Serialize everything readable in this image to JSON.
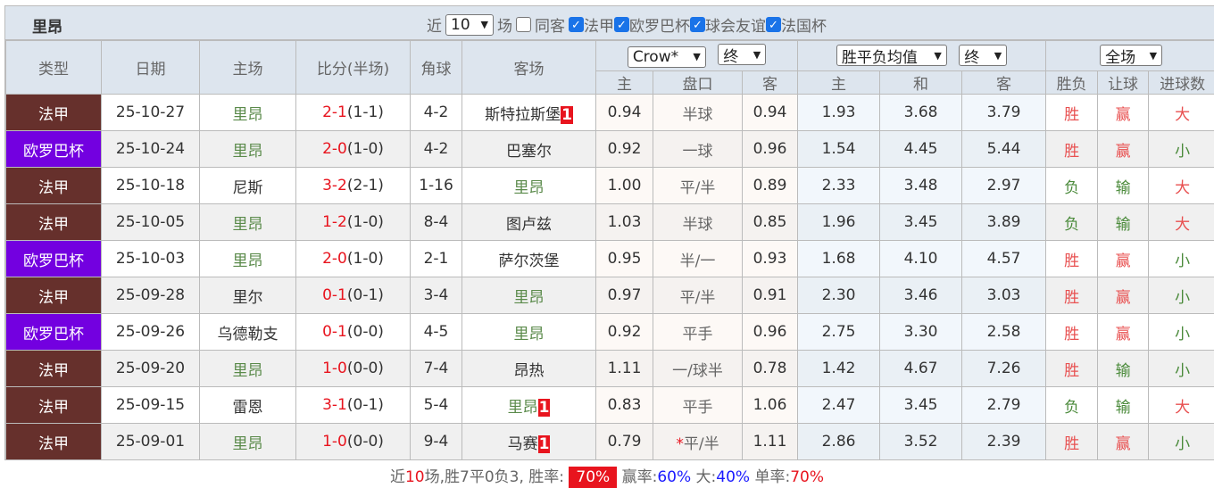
{
  "title": {
    "team": "里昂",
    "near_label": "近",
    "count": "10",
    "unit": "场",
    "same_label": "同客",
    "competitions": [
      {
        "label": "法甲",
        "checked": true
      },
      {
        "label": "欧罗巴杯",
        "checked": true
      },
      {
        "label": "球会友谊",
        "checked": true
      },
      {
        "label": "法国杯",
        "checked": true
      }
    ]
  },
  "header": {
    "type": "类型",
    "date": "日期",
    "home": "主场",
    "score": "比分(半场)",
    "corner": "角球",
    "away": "客场",
    "company_select": "Crow*",
    "handicap_time_select": "终",
    "avg_select": "胜平负均值",
    "avg_time_select": "终",
    "period_select": "全场",
    "h_home": "主",
    "h_line": "盘口",
    "h_away": "客",
    "e_home": "主",
    "e_draw": "和",
    "e_away": "客",
    "res": "胜负",
    "ah": "让球",
    "goals": "进球数"
  },
  "colors": {
    "法甲": "#66302c",
    "欧罗巴杯": "#7300e0"
  },
  "rows": [
    {
      "type": "法甲",
      "date": "25-10-27",
      "home": "里昂",
      "ft": "2-1",
      "ht": "(1-1)",
      "corner": "4-2",
      "away": "斯特拉斯堡",
      "away_badge": "1",
      "ah_home": "0.94",
      "ah_line": "半球",
      "ah_star": "",
      "ah_away": "0.94",
      "eu_home": "1.93",
      "eu_draw": "3.68",
      "eu_away": "3.79",
      "res": "胜",
      "ah": "赢",
      "goals": "大"
    },
    {
      "type": "欧罗巴杯",
      "date": "25-10-24",
      "home": "里昂",
      "ft": "2-0",
      "ht": "(1-0)",
      "corner": "4-2",
      "away": "巴塞尔",
      "away_badge": "",
      "ah_home": "0.92",
      "ah_line": "一球",
      "ah_star": "",
      "ah_away": "0.96",
      "eu_home": "1.54",
      "eu_draw": "4.45",
      "eu_away": "5.44",
      "res": "胜",
      "ah": "赢",
      "goals": "小"
    },
    {
      "type": "法甲",
      "date": "25-10-18",
      "home": "尼斯",
      "ft": "3-2",
      "ht": "(2-1)",
      "corner": "1-16",
      "away": "里昂",
      "away_badge": "",
      "ah_home": "1.00",
      "ah_line": "平/半",
      "ah_star": "",
      "ah_away": "0.89",
      "eu_home": "2.33",
      "eu_draw": "3.48",
      "eu_away": "2.97",
      "res": "负",
      "ah": "输",
      "goals": "大"
    },
    {
      "type": "法甲",
      "date": "25-10-05",
      "home": "里昂",
      "ft": "1-2",
      "ht": "(1-0)",
      "corner": "8-4",
      "away": "图卢兹",
      "away_badge": "",
      "ah_home": "1.03",
      "ah_line": "半球",
      "ah_star": "",
      "ah_away": "0.85",
      "eu_home": "1.96",
      "eu_draw": "3.45",
      "eu_away": "3.89",
      "res": "负",
      "ah": "输",
      "goals": "大"
    },
    {
      "type": "欧罗巴杯",
      "date": "25-10-03",
      "home": "里昂",
      "ft": "2-0",
      "ht": "(1-0)",
      "corner": "2-1",
      "away": "萨尔茨堡",
      "away_badge": "",
      "ah_home": "0.95",
      "ah_line": "半/一",
      "ah_star": "",
      "ah_away": "0.93",
      "eu_home": "1.68",
      "eu_draw": "4.10",
      "eu_away": "4.57",
      "res": "胜",
      "ah": "赢",
      "goals": "小"
    },
    {
      "type": "法甲",
      "date": "25-09-28",
      "home": "里尔",
      "ft": "0-1",
      "ht": "(0-1)",
      "corner": "3-4",
      "away": "里昂",
      "away_badge": "",
      "ah_home": "0.97",
      "ah_line": "平/半",
      "ah_star": "",
      "ah_away": "0.91",
      "eu_home": "2.30",
      "eu_draw": "3.46",
      "eu_away": "3.03",
      "res": "胜",
      "ah": "赢",
      "goals": "小"
    },
    {
      "type": "欧罗巴杯",
      "date": "25-09-26",
      "home": "乌德勒支",
      "ft": "0-1",
      "ht": "(0-0)",
      "corner": "4-5",
      "away": "里昂",
      "away_badge": "",
      "ah_home": "0.92",
      "ah_line": "平手",
      "ah_star": "",
      "ah_away": "0.96",
      "eu_home": "2.75",
      "eu_draw": "3.30",
      "eu_away": "2.58",
      "res": "胜",
      "ah": "赢",
      "goals": "小"
    },
    {
      "type": "法甲",
      "date": "25-09-20",
      "home": "里昂",
      "ft": "1-0",
      "ht": "(0-0)",
      "corner": "7-4",
      "away": "昂热",
      "away_badge": "",
      "ah_home": "1.11",
      "ah_line": "一/球半",
      "ah_star": "",
      "ah_away": "0.78",
      "eu_home": "1.42",
      "eu_draw": "4.67",
      "eu_away": "7.26",
      "res": "胜",
      "ah": "输",
      "goals": "小"
    },
    {
      "type": "法甲",
      "date": "25-09-15",
      "home": "雷恩",
      "ft": "3-1",
      "ht": "(0-1)",
      "corner": "5-4",
      "away": "里昂",
      "away_badge": "1",
      "ah_home": "0.83",
      "ah_line": "平手",
      "ah_star": "",
      "ah_away": "1.06",
      "eu_home": "2.47",
      "eu_draw": "3.45",
      "eu_away": "2.79",
      "res": "负",
      "ah": "输",
      "goals": "大"
    },
    {
      "type": "法甲",
      "date": "25-09-01",
      "home": "里昂",
      "ft": "1-0",
      "ht": "(0-0)",
      "corner": "9-4",
      "away": "马赛",
      "away_badge": "1",
      "ah_home": "0.79",
      "ah_line": "平/半",
      "ah_star": "*",
      "ah_away": "1.11",
      "eu_home": "2.86",
      "eu_draw": "3.52",
      "eu_away": "2.39",
      "res": "胜",
      "ah": "赢",
      "goals": "小"
    }
  ],
  "footer": {
    "p1": "近",
    "n": "10",
    "p2": "场,胜7平0负3, 胜率:",
    "win_rate": "70%",
    "p3": "赢率:",
    "ah_rate": "60%",
    "p4": "大:",
    "over_rate": "40%",
    "p5": "单率:",
    "odd_rate": "70%"
  }
}
